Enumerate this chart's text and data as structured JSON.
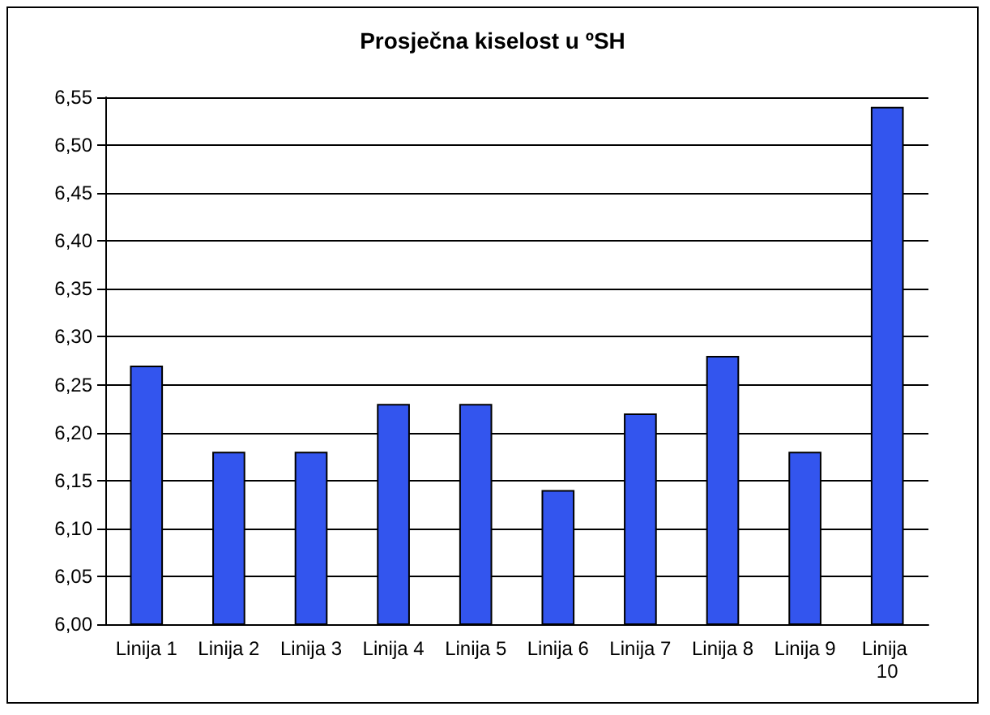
{
  "chart_data": {
    "type": "bar",
    "title": "Prosječna kiselost u ºSH",
    "categories": [
      "Linija 1",
      "Linija 2",
      "Linija 3",
      "Linija 4",
      "Linija 5",
      "Linija 6",
      "Linija 7",
      "Linija 8",
      "Linija 9",
      "Linija 10"
    ],
    "values": [
      6.27,
      6.18,
      6.18,
      6.23,
      6.23,
      6.14,
      6.22,
      6.28,
      6.18,
      6.54
    ],
    "color": "#3355ee",
    "ylim": [
      6.0,
      6.55
    ],
    "yticks": [
      {
        "value": 6.0,
        "label": "6,00"
      },
      {
        "value": 6.05,
        "label": "6,05"
      },
      {
        "value": 6.1,
        "label": "6,10"
      },
      {
        "value": 6.15,
        "label": "6,15"
      },
      {
        "value": 6.2,
        "label": "6,20"
      },
      {
        "value": 6.25,
        "label": "6,25"
      },
      {
        "value": 6.3,
        "label": "6,30"
      },
      {
        "value": 6.35,
        "label": "6,35"
      },
      {
        "value": 6.4,
        "label": "6,40"
      },
      {
        "value": 6.45,
        "label": "6,45"
      },
      {
        "value": 6.5,
        "label": "6,50"
      },
      {
        "value": 6.55,
        "label": "6,55"
      }
    ],
    "grid": "y"
  }
}
